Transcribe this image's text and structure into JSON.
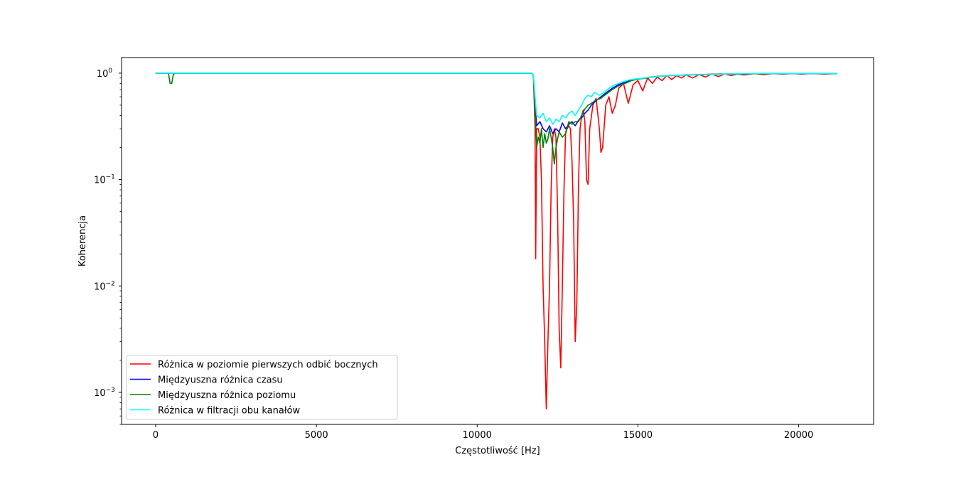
{
  "chart_data": {
    "type": "line",
    "title": "",
    "xlabel": "Częstotliwość [Hz]",
    "ylabel": "Koherencja",
    "xlim": [
      -1060,
      22330
    ],
    "ylim": [
      0.0005,
      1.4
    ],
    "yscale": "log",
    "grid": false,
    "legend_position": "lower-left",
    "x_ticks": [
      {
        "value": 0,
        "label": "0"
      },
      {
        "value": 5000,
        "label": "5000"
      },
      {
        "value": 10000,
        "label": "10000"
      },
      {
        "value": 15000,
        "label": "15000"
      },
      {
        "value": 20000,
        "label": "20000"
      }
    ],
    "y_ticks": [
      {
        "value": 1,
        "base": "10",
        "exp": "0"
      },
      {
        "value": 0.1,
        "base": "10",
        "exp": "−1"
      },
      {
        "value": 0.01,
        "base": "10",
        "exp": "−2"
      },
      {
        "value": 0.001,
        "base": "10",
        "exp": "−3"
      }
    ],
    "series": [
      {
        "name": "Różnica w poziomie pierwszych odbić bocznych",
        "color": "#ff0000",
        "points": [
          [
            0,
            1
          ],
          [
            11700,
            1
          ],
          [
            11750,
            0.95
          ],
          [
            11800,
            0.3
          ],
          [
            11820,
            0.018
          ],
          [
            11850,
            0.3
          ],
          [
            11900,
            0.3
          ],
          [
            11950,
            0.25
          ],
          [
            12000,
            0.1
          ],
          [
            12050,
            0.01
          ],
          [
            12100,
            0.003
          ],
          [
            12150,
            0.0007
          ],
          [
            12200,
            0.003
          ],
          [
            12250,
            0.01
          ],
          [
            12300,
            0.08
          ],
          [
            12350,
            0.25
          ],
          [
            12400,
            0.3
          ],
          [
            12450,
            0.25
          ],
          [
            12500,
            0.05
          ],
          [
            12550,
            0.004
          ],
          [
            12600,
            0.0017
          ],
          [
            12650,
            0.01
          ],
          [
            12700,
            0.08
          ],
          [
            12750,
            0.28
          ],
          [
            12800,
            0.3
          ],
          [
            12850,
            0.32
          ],
          [
            12900,
            0.3
          ],
          [
            12950,
            0.15
          ],
          [
            13000,
            0.04
          ],
          [
            13050,
            0.003
          ],
          [
            13100,
            0.007
          ],
          [
            13150,
            0.09
          ],
          [
            13200,
            0.3
          ],
          [
            13250,
            0.4
          ],
          [
            13300,
            0.45
          ],
          [
            13350,
            0.35
          ],
          [
            13400,
            0.1
          ],
          [
            13450,
            0.09
          ],
          [
            13500,
            0.3
          ],
          [
            13600,
            0.5
          ],
          [
            13700,
            0.58
          ],
          [
            13800,
            0.3
          ],
          [
            13850,
            0.18
          ],
          [
            13900,
            0.2
          ],
          [
            14000,
            0.5
          ],
          [
            14100,
            0.6
          ],
          [
            14200,
            0.42
          ],
          [
            14300,
            0.5
          ],
          [
            14400,
            0.72
          ],
          [
            14550,
            0.8
          ],
          [
            14700,
            0.52
          ],
          [
            14850,
            0.78
          ],
          [
            15000,
            0.85
          ],
          [
            15150,
            0.68
          ],
          [
            15300,
            0.9
          ],
          [
            15450,
            0.8
          ],
          [
            15600,
            0.92
          ],
          [
            15750,
            0.85
          ],
          [
            15900,
            0.95
          ],
          [
            16050,
            0.87
          ],
          [
            16200,
            0.95
          ],
          [
            16350,
            0.9
          ],
          [
            16500,
            0.96
          ],
          [
            16700,
            0.9
          ],
          [
            16900,
            0.97
          ],
          [
            17100,
            0.92
          ],
          [
            17300,
            0.98
          ],
          [
            17500,
            0.93
          ],
          [
            17700,
            0.98
          ],
          [
            17900,
            0.95
          ],
          [
            18100,
            0.98
          ],
          [
            18300,
            0.96
          ],
          [
            18600,
            0.99
          ],
          [
            18900,
            0.97
          ],
          [
            19200,
            0.99
          ],
          [
            19500,
            0.98
          ],
          [
            19800,
            0.99
          ],
          [
            20100,
            0.98
          ],
          [
            20400,
            0.99
          ],
          [
            20800,
            0.98
          ],
          [
            21200,
            0.99
          ]
        ]
      },
      {
        "name": "Międzyuszna różnica czasu",
        "color": "#0000ff",
        "points": [
          [
            0,
            1
          ],
          [
            11700,
            1
          ],
          [
            11750,
            0.95
          ],
          [
            11800,
            0.5
          ],
          [
            11850,
            0.32
          ],
          [
            11950,
            0.35
          ],
          [
            12050,
            0.3
          ],
          [
            12150,
            0.28
          ],
          [
            12250,
            0.32
          ],
          [
            12350,
            0.27
          ],
          [
            12450,
            0.3
          ],
          [
            12550,
            0.28
          ],
          [
            12650,
            0.34
          ],
          [
            12750,
            0.3
          ],
          [
            12850,
            0.33
          ],
          [
            12950,
            0.35
          ],
          [
            13050,
            0.32
          ],
          [
            13150,
            0.36
          ],
          [
            13250,
            0.38
          ],
          [
            13350,
            0.42
          ],
          [
            13450,
            0.45
          ],
          [
            13550,
            0.5
          ],
          [
            13700,
            0.55
          ],
          [
            13850,
            0.6
          ],
          [
            14000,
            0.65
          ],
          [
            14200,
            0.72
          ],
          [
            14400,
            0.78
          ],
          [
            14600,
            0.82
          ],
          [
            14800,
            0.86
          ],
          [
            15000,
            0.88
          ],
          [
            15300,
            0.91
          ],
          [
            15600,
            0.93
          ],
          [
            16000,
            0.95
          ],
          [
            16500,
            0.96
          ],
          [
            17000,
            0.97
          ],
          [
            17500,
            0.98
          ],
          [
            18000,
            0.98
          ],
          [
            19000,
            0.99
          ],
          [
            20000,
            0.99
          ],
          [
            21200,
            0.99
          ]
        ]
      },
      {
        "name": "Międzyuszna różnica poziomu",
        "color": "#008000",
        "points": [
          [
            0,
            1
          ],
          [
            400,
            1
          ],
          [
            450,
            0.8
          ],
          [
            500,
            0.8
          ],
          [
            550,
            0.97
          ],
          [
            600,
            1
          ],
          [
            11700,
            1
          ],
          [
            11750,
            0.95
          ],
          [
            11800,
            0.45
          ],
          [
            11850,
            0.2
          ],
          [
            11900,
            0.25
          ],
          [
            11950,
            0.22
          ],
          [
            12000,
            0.3
          ],
          [
            12050,
            0.2
          ],
          [
            12100,
            0.27
          ],
          [
            12150,
            0.22
          ],
          [
            12200,
            0.24
          ],
          [
            12250,
            0.3
          ],
          [
            12300,
            0.25
          ],
          [
            12350,
            0.2
          ],
          [
            12400,
            0.14
          ],
          [
            12450,
            0.2
          ],
          [
            12500,
            0.24
          ],
          [
            12550,
            0.28
          ],
          [
            12650,
            0.25
          ],
          [
            12750,
            0.27
          ],
          [
            12850,
            0.35
          ],
          [
            12950,
            0.33
          ],
          [
            13050,
            0.35
          ],
          [
            13150,
            0.35
          ],
          [
            13250,
            0.4
          ],
          [
            13350,
            0.46
          ],
          [
            13450,
            0.5
          ],
          [
            13550,
            0.52
          ],
          [
            13700,
            0.56
          ],
          [
            13850,
            0.58
          ],
          [
            14000,
            0.63
          ],
          [
            14200,
            0.7
          ],
          [
            14400,
            0.76
          ],
          [
            14600,
            0.8
          ],
          [
            14800,
            0.85
          ],
          [
            15000,
            0.88
          ],
          [
            15300,
            0.9
          ],
          [
            15600,
            0.93
          ],
          [
            16000,
            0.95
          ],
          [
            16500,
            0.96
          ],
          [
            17000,
            0.97
          ],
          [
            17500,
            0.98
          ],
          [
            18000,
            0.98
          ],
          [
            19000,
            0.99
          ],
          [
            20000,
            0.99
          ],
          [
            21200,
            0.99
          ]
        ]
      },
      {
        "name": "Różnica w filtracji obu kanałów",
        "color": "#00ffff",
        "points": [
          [
            0,
            1
          ],
          [
            11700,
            1
          ],
          [
            11750,
            0.96
          ],
          [
            11800,
            0.6
          ],
          [
            11850,
            0.4
          ],
          [
            11950,
            0.38
          ],
          [
            12050,
            0.42
          ],
          [
            12150,
            0.35
          ],
          [
            12250,
            0.38
          ],
          [
            12350,
            0.33
          ],
          [
            12450,
            0.37
          ],
          [
            12550,
            0.35
          ],
          [
            12650,
            0.4
          ],
          [
            12750,
            0.38
          ],
          [
            12850,
            0.42
          ],
          [
            12950,
            0.44
          ],
          [
            13050,
            0.4
          ],
          [
            13150,
            0.45
          ],
          [
            13250,
            0.5
          ],
          [
            13350,
            0.58
          ],
          [
            13450,
            0.62
          ],
          [
            13550,
            0.6
          ],
          [
            13650,
            0.66
          ],
          [
            13800,
            0.62
          ],
          [
            13950,
            0.66
          ],
          [
            14100,
            0.72
          ],
          [
            14300,
            0.78
          ],
          [
            14500,
            0.82
          ],
          [
            14700,
            0.86
          ],
          [
            14900,
            0.88
          ],
          [
            15200,
            0.9
          ],
          [
            15500,
            0.92
          ],
          [
            15800,
            0.94
          ],
          [
            16200,
            0.95
          ],
          [
            16700,
            0.96
          ],
          [
            17200,
            0.97
          ],
          [
            17700,
            0.98
          ],
          [
            18500,
            0.99
          ],
          [
            19500,
            0.99
          ],
          [
            21200,
            0.99
          ]
        ]
      }
    ]
  }
}
